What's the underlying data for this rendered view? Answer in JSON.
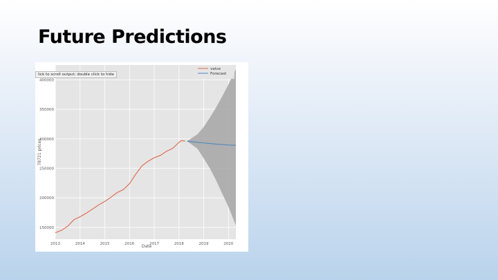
{
  "slide": {
    "title": "Future Predictions"
  },
  "output_tooltip": "lick to scroll output; double click to hide",
  "colors": {
    "value_line": "#e0664a",
    "forecast_line": "#4a86c0",
    "ci_band": "#a6a6a6",
    "plot_bg": "#e5e5e5"
  },
  "chart_data": {
    "type": "line",
    "xlabel": "Date",
    "ylabel": "78721 prices",
    "x_ticks": [
      "2013",
      "2014",
      "2015",
      "2016",
      "2017",
      "2018",
      "2019",
      "2020"
    ],
    "y_ticks": [
      "150000",
      "200000",
      "250000",
      "300000",
      "350000",
      "400000"
    ],
    "xlim": [
      2013.0,
      2020.3
    ],
    "ylim": [
      130000,
      425000
    ],
    "grid": true,
    "legend_position": "top-right",
    "series": [
      {
        "name": "value",
        "x": [
          2013.0,
          2013.25,
          2013.5,
          2013.75,
          2014.0,
          2014.25,
          2014.5,
          2014.75,
          2015.0,
          2015.25,
          2015.5,
          2015.75,
          2016.0,
          2016.25,
          2016.5,
          2016.75,
          2017.0,
          2017.25,
          2017.5,
          2017.75,
          2018.0,
          2018.1,
          2018.25
        ],
        "y": [
          141000,
          145000,
          152000,
          163000,
          168000,
          174000,
          181000,
          188000,
          194000,
          201000,
          209000,
          214000,
          224000,
          240000,
          254000,
          262000,
          268000,
          272000,
          279000,
          284000,
          294000,
          297000,
          296000
        ]
      },
      {
        "name": "Forecast",
        "x": [
          2018.33,
          2019.0,
          2019.5,
          2020.0,
          2020.3
        ],
        "y": [
          296000,
          293000,
          291000,
          289500,
          289000
        ]
      }
    ],
    "confidence_interval": {
      "x": [
        2018.33,
        2018.75,
        2019.0,
        2019.25,
        2019.5,
        2019.75,
        2020.0,
        2020.3
      ],
      "upper": [
        296000,
        308000,
        320000,
        336000,
        353000,
        372000,
        392000,
        418000
      ],
      "lower": [
        296000,
        283000,
        267000,
        250000,
        230000,
        207000,
        185000,
        153000
      ]
    }
  }
}
